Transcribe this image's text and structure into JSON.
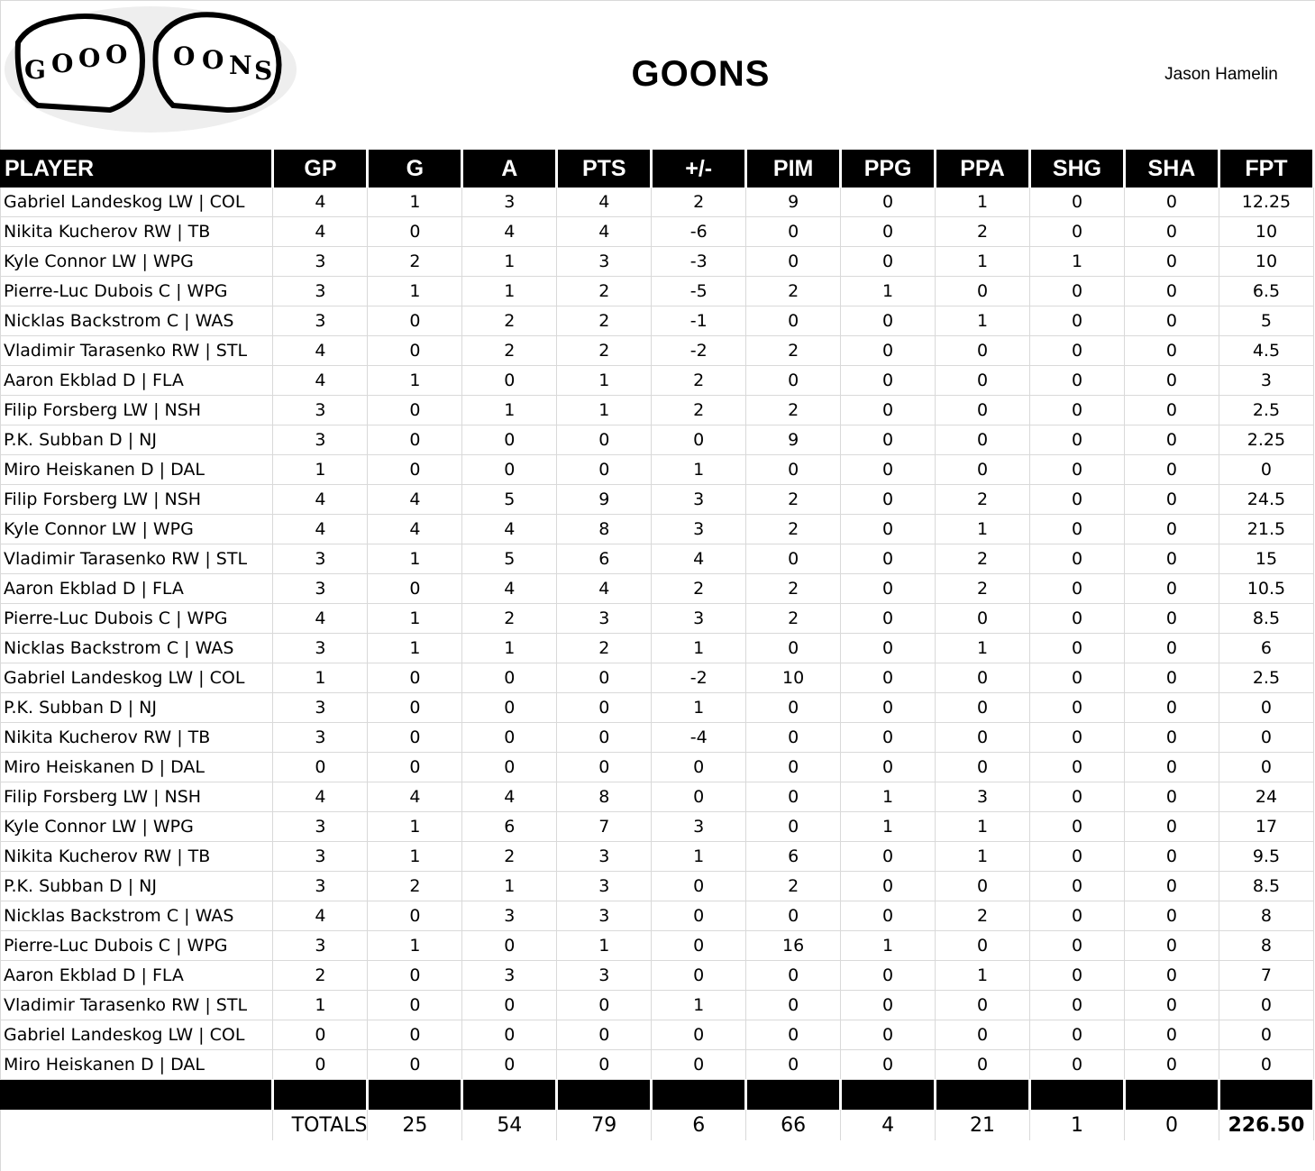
{
  "header": {
    "title": "GOONS",
    "owner": "Jason Hamelin",
    "logo_text": "GOOO GONS"
  },
  "columns": [
    "PLAYER",
    "GP",
    "G",
    "A",
    "PTS",
    "+/-",
    "PIM",
    "PPG",
    "PPA",
    "SHG",
    "SHA",
    "FPT"
  ],
  "rows": [
    [
      "Gabriel Landeskog LW | COL",
      "4",
      "1",
      "3",
      "4",
      "2",
      "9",
      "0",
      "1",
      "0",
      "0",
      "12.25"
    ],
    [
      "Nikita Kucherov RW | TB",
      "4",
      "0",
      "4",
      "4",
      "-6",
      "0",
      "0",
      "2",
      "0",
      "0",
      "10"
    ],
    [
      "Kyle Connor LW | WPG",
      "3",
      "2",
      "1",
      "3",
      "-3",
      "0",
      "0",
      "1",
      "1",
      "0",
      "10"
    ],
    [
      "Pierre-Luc Dubois C | WPG",
      "3",
      "1",
      "1",
      "2",
      "-5",
      "2",
      "1",
      "0",
      "0",
      "0",
      "6.5"
    ],
    [
      "Nicklas Backstrom C | WAS",
      "3",
      "0",
      "2",
      "2",
      "-1",
      "0",
      "0",
      "1",
      "0",
      "0",
      "5"
    ],
    [
      "Vladimir Tarasenko RW | STL",
      "4",
      "0",
      "2",
      "2",
      "-2",
      "2",
      "0",
      "0",
      "0",
      "0",
      "4.5"
    ],
    [
      "Aaron Ekblad D | FLA",
      "4",
      "1",
      "0",
      "1",
      "2",
      "0",
      "0",
      "0",
      "0",
      "0",
      "3"
    ],
    [
      "Filip Forsberg LW | NSH",
      "3",
      "0",
      "1",
      "1",
      "2",
      "2",
      "0",
      "0",
      "0",
      "0",
      "2.5"
    ],
    [
      "P.K. Subban D | NJ",
      "3",
      "0",
      "0",
      "0",
      "0",
      "9",
      "0",
      "0",
      "0",
      "0",
      "2.25"
    ],
    [
      "Miro Heiskanen D | DAL",
      "1",
      "0",
      "0",
      "0",
      "1",
      "0",
      "0",
      "0",
      "0",
      "0",
      "0"
    ],
    [
      "Filip Forsberg LW | NSH",
      "4",
      "4",
      "5",
      "9",
      "3",
      "2",
      "0",
      "2",
      "0",
      "0",
      "24.5"
    ],
    [
      "Kyle Connor LW | WPG",
      "4",
      "4",
      "4",
      "8",
      "3",
      "2",
      "0",
      "1",
      "0",
      "0",
      "21.5"
    ],
    [
      "Vladimir Tarasenko RW | STL",
      "3",
      "1",
      "5",
      "6",
      "4",
      "0",
      "0",
      "2",
      "0",
      "0",
      "15"
    ],
    [
      "Aaron Ekblad D | FLA",
      "3",
      "0",
      "4",
      "4",
      "2",
      "2",
      "0",
      "2",
      "0",
      "0",
      "10.5"
    ],
    [
      "Pierre-Luc Dubois C | WPG",
      "4",
      "1",
      "2",
      "3",
      "3",
      "2",
      "0",
      "0",
      "0",
      "0",
      "8.5"
    ],
    [
      "Nicklas Backstrom C | WAS",
      "3",
      "1",
      "1",
      "2",
      "1",
      "0",
      "0",
      "1",
      "0",
      "0",
      "6"
    ],
    [
      "Gabriel Landeskog LW | COL",
      "1",
      "0",
      "0",
      "0",
      "-2",
      "10",
      "0",
      "0",
      "0",
      "0",
      "2.5"
    ],
    [
      "P.K. Subban D | NJ",
      "3",
      "0",
      "0",
      "0",
      "1",
      "0",
      "0",
      "0",
      "0",
      "0",
      "0"
    ],
    [
      "Nikita Kucherov RW | TB",
      "3",
      "0",
      "0",
      "0",
      "-4",
      "0",
      "0",
      "0",
      "0",
      "0",
      "0"
    ],
    [
      "Miro Heiskanen D | DAL",
      "0",
      "0",
      "0",
      "0",
      "0",
      "0",
      "0",
      "0",
      "0",
      "0",
      "0"
    ],
    [
      "Filip Forsberg LW | NSH",
      "4",
      "4",
      "4",
      "8",
      "0",
      "0",
      "1",
      "3",
      "0",
      "0",
      "24"
    ],
    [
      "Kyle Connor LW | WPG",
      "3",
      "1",
      "6",
      "7",
      "3",
      "0",
      "1",
      "1",
      "0",
      "0",
      "17"
    ],
    [
      "Nikita Kucherov RW | TB",
      "3",
      "1",
      "2",
      "3",
      "1",
      "6",
      "0",
      "1",
      "0",
      "0",
      "9.5"
    ],
    [
      "P.K. Subban D | NJ",
      "3",
      "2",
      "1",
      "3",
      "0",
      "2",
      "0",
      "0",
      "0",
      "0",
      "8.5"
    ],
    [
      "Nicklas Backstrom C | WAS",
      "4",
      "0",
      "3",
      "3",
      "0",
      "0",
      "0",
      "2",
      "0",
      "0",
      "8"
    ],
    [
      "Pierre-Luc Dubois C | WPG",
      "3",
      "1",
      "0",
      "1",
      "0",
      "16",
      "1",
      "0",
      "0",
      "0",
      "8"
    ],
    [
      "Aaron Ekblad D | FLA",
      "2",
      "0",
      "3",
      "3",
      "0",
      "0",
      "0",
      "1",
      "0",
      "0",
      "7"
    ],
    [
      "Vladimir Tarasenko RW | STL",
      "1",
      "0",
      "0",
      "0",
      "1",
      "0",
      "0",
      "0",
      "0",
      "0",
      "0"
    ],
    [
      "Gabriel Landeskog LW | COL",
      "0",
      "0",
      "0",
      "0",
      "0",
      "0",
      "0",
      "0",
      "0",
      "0",
      "0"
    ],
    [
      "Miro Heiskanen D | DAL",
      "0",
      "0",
      "0",
      "0",
      "0",
      "0",
      "0",
      "0",
      "0",
      "0",
      "0"
    ]
  ],
  "totals": {
    "label": "TOTALS",
    "values": [
      "25",
      "54",
      "79",
      "6",
      "66",
      "4",
      "21",
      "1",
      "0",
      "226.50"
    ]
  }
}
